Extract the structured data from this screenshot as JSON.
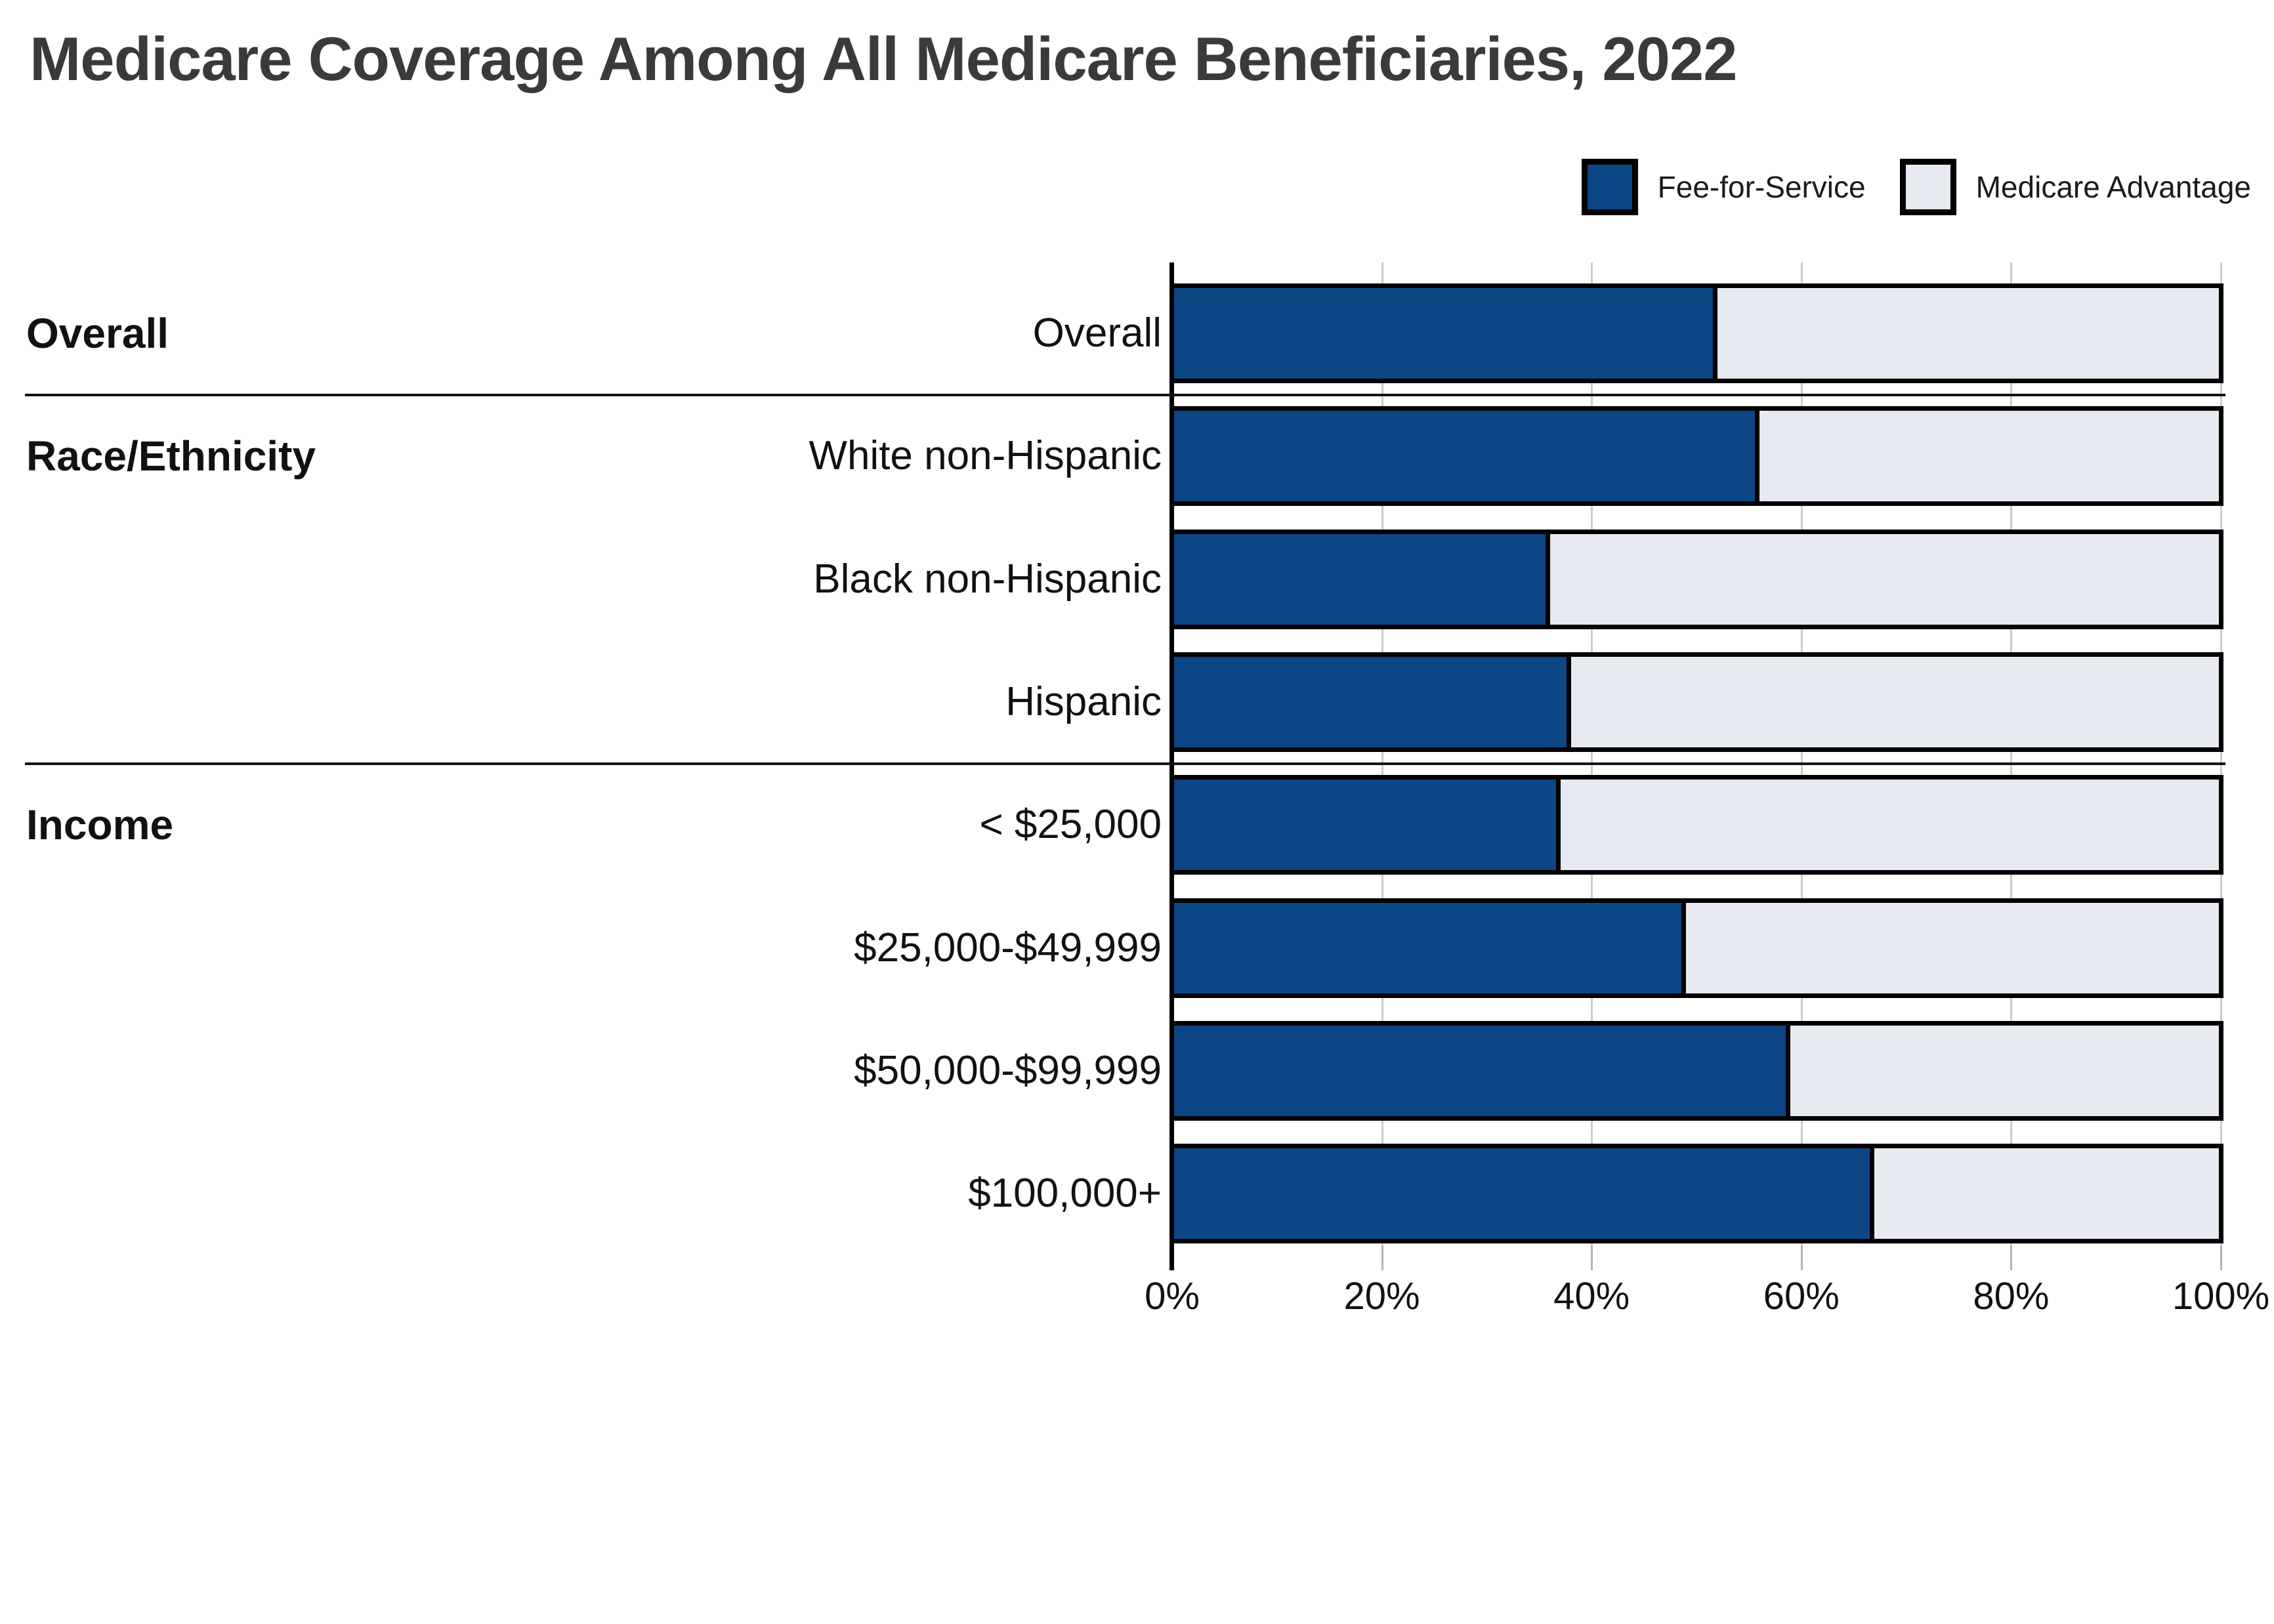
{
  "title": "Medicare Coverage Among All Medicare Beneficiaries, 2022",
  "colors": {
    "fee_for_service": "#0D4685",
    "medicare_advantage": "#E7EAF1",
    "bar_border": "#000000",
    "gridline": "#cccccc",
    "title_text": "#3a3a3a"
  },
  "legend": [
    {
      "label": "Fee-for-Service",
      "color": "#0D4685"
    },
    {
      "label": "Medicare Advantage",
      "color": "#E7EAF1"
    }
  ],
  "chart_data": {
    "type": "bar",
    "orientation": "horizontal",
    "stacked": true,
    "title": "Medicare Coverage Among All Medicare Beneficiaries, 2022",
    "groups": [
      {
        "label": "Overall",
        "rows": [
          "Overall"
        ]
      },
      {
        "label": "Race/Ethnicity",
        "rows": [
          "White non-Hispanic",
          "Black non-Hispanic",
          "Hispanic"
        ]
      },
      {
        "label": "Income",
        "rows": [
          "< $25,000",
          "$25,000-$49,999",
          "$50,000-$99,999",
          "$100,000+"
        ]
      }
    ],
    "categories": [
      "Overall",
      "White non-Hispanic",
      "Black non-Hispanic",
      "Hispanic",
      "< $25,000",
      "$25,000-$49,999",
      "$50,000-$99,999",
      "$100,000+"
    ],
    "series": [
      {
        "name": "Fee-for-Service",
        "color": "#0D4685",
        "values": [
          52,
          56,
          36,
          38,
          37,
          49,
          59,
          67
        ]
      },
      {
        "name": "Medicare Advantage",
        "color": "#E7EAF1",
        "values": [
          48,
          44,
          64,
          62,
          63,
          51,
          41,
          33
        ]
      }
    ],
    "x_axis": {
      "min": 0,
      "max": 100,
      "tick_labels": [
        "0%",
        "20%",
        "40%",
        "60%",
        "80%",
        "100%"
      ],
      "grid": true
    },
    "legend_position": "top-right"
  }
}
